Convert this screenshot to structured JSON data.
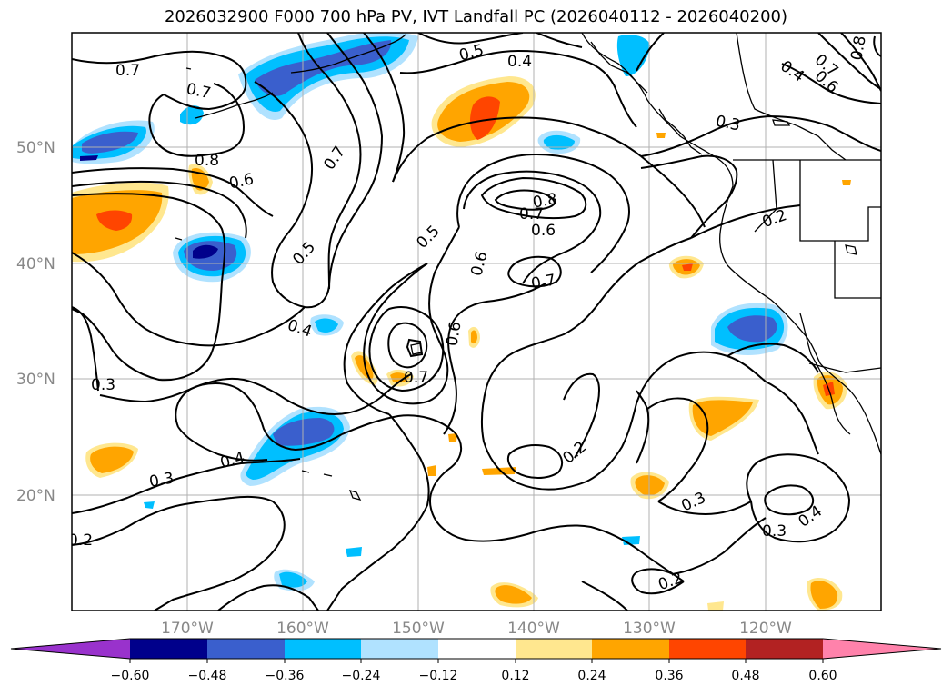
{
  "title": "2026032900 F000 700 hPa PV, IVT Landfall PC (2026040112 - 2026040200)",
  "map": {
    "lat_labels": [
      "50°N",
      "40°N",
      "30°N",
      "20°N"
    ],
    "lon_labels": [
      "170°W",
      "160°W",
      "150°W",
      "140°W",
      "130°W",
      "120°W"
    ],
    "contour_labels": [
      "0.7",
      "0.7",
      "0.5",
      "0.4",
      "0.8",
      "0.6",
      "0.7",
      "0.8",
      "0.7",
      "0.6",
      "0.5",
      "0.5",
      "0.6",
      "0.7",
      "0.4",
      "0.6",
      "0.7",
      "0.3",
      "0.4",
      "0.3",
      "0.2",
      "0.2",
      "0.3",
      "0.3",
      "0.4",
      "0.2",
      "0.3",
      "0.2",
      "0.7",
      "0.6",
      "0.4",
      "0.8"
    ]
  },
  "colorbar": {
    "ticks": [
      "−0.60",
      "−0.48",
      "−0.36",
      "−0.24",
      "−0.12",
      "0.12",
      "0.24",
      "0.36",
      "0.48",
      "0.60"
    ],
    "colors": [
      "#9932cc",
      "#00008b",
      "#3a5fcd",
      "#00bfff",
      "#b0e2ff",
      "#ffffff",
      "#ffe78f",
      "#ffa500",
      "#ff4500",
      "#b22222",
      "#ff82ab"
    ]
  },
  "colors": {
    "pos1": "#ffe78f",
    "pos2": "#ffa500",
    "pos3": "#ff4500",
    "neg1": "#b0e2ff",
    "neg2": "#00bfff",
    "neg3": "#3a5fcd",
    "neg4": "#00008b"
  }
}
